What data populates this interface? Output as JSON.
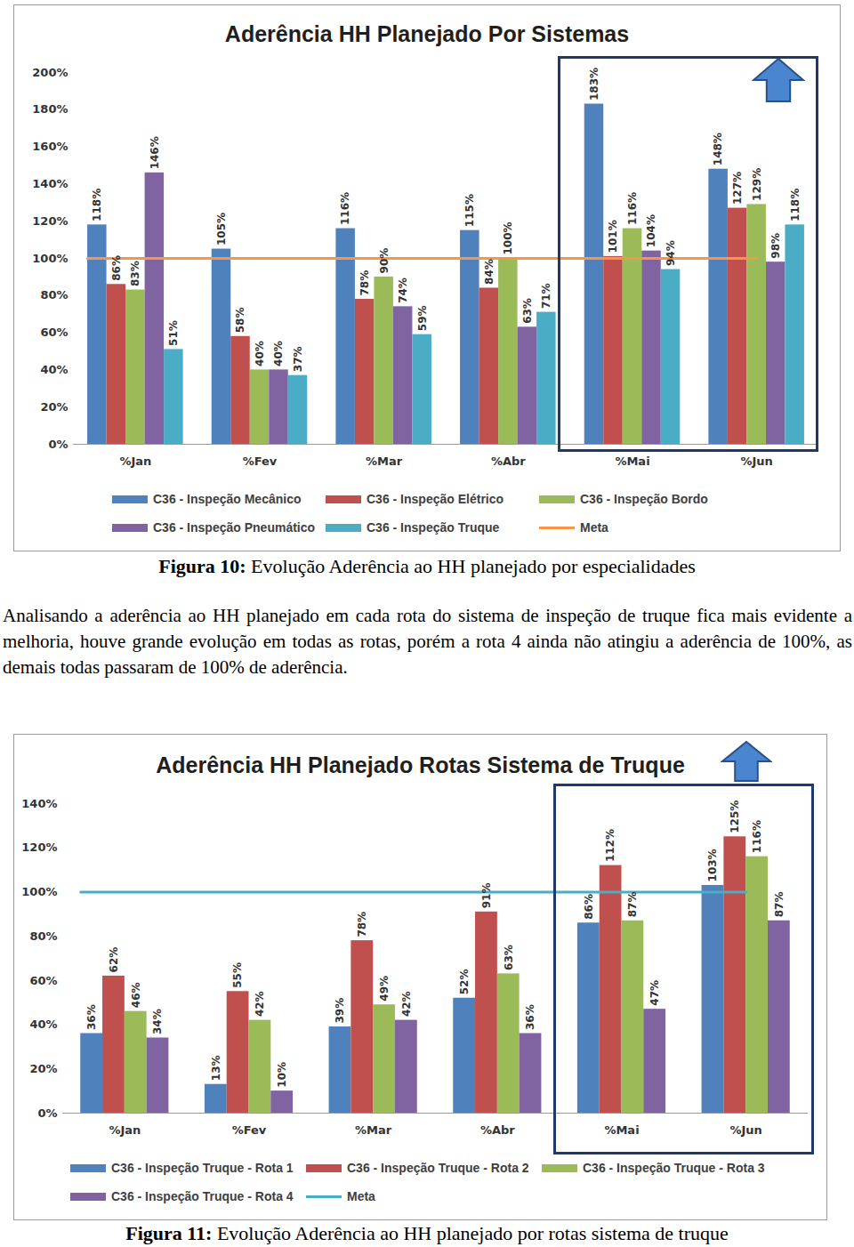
{
  "chart_data": [
    {
      "type": "bar",
      "title": "Aderência HH Planejado Por Sistemas",
      "categories": [
        "%Jan",
        "%Fev",
        "%Mar",
        "%Abr",
        "%Mai",
        "%Jun"
      ],
      "series": [
        {
          "name": "C36 - Inspeção Mecânico",
          "type": "bar",
          "color": "#4f81bd",
          "values": [
            118,
            105,
            116,
            115,
            183,
            148
          ],
          "value_labels": [
            "118%",
            "105%",
            "116%",
            "115%",
            "183%",
            "148%"
          ]
        },
        {
          "name": "C36 - Inspeção Elétrico",
          "type": "bar",
          "color": "#c0504d",
          "values": [
            86,
            58,
            78,
            84,
            101,
            127
          ],
          "value_labels": [
            "86%",
            "58%",
            "78%",
            "84%",
            "101%",
            "127%"
          ]
        },
        {
          "name": "C36 - Inspeção Bordo",
          "type": "bar",
          "color": "#9bbb59",
          "values": [
            83,
            40,
            90,
            100,
            116,
            129
          ],
          "value_labels": [
            "83%",
            "40%",
            "90%",
            "100%",
            "116%",
            "129%"
          ]
        },
        {
          "name": "C36 - Inspeção Pneumático",
          "type": "bar",
          "color": "#8064a2",
          "values": [
            146,
            40,
            74,
            63,
            104,
            98
          ],
          "value_labels": [
            "146%",
            "40%",
            "74%",
            "63%",
            "104%",
            "98%"
          ]
        },
        {
          "name": "C36 - Inspeção Truque",
          "type": "bar",
          "color": "#4bacc6",
          "values": [
            51,
            37,
            59,
            71,
            94,
            118
          ],
          "value_labels": [
            "51%",
            "37%",
            "59%",
            "71%",
            "94%",
            "118%"
          ]
        },
        {
          "name": "Meta",
          "type": "line",
          "color": "#f79646",
          "values": [
            100,
            100,
            100,
            100,
            100,
            100
          ]
        }
      ],
      "ylim": [
        0,
        200
      ],
      "yticks": [
        {
          "value": 0,
          "label": "0%"
        },
        {
          "value": 20,
          "label": "20%"
        },
        {
          "value": 40,
          "label": "40%"
        },
        {
          "value": 60,
          "label": "60%"
        },
        {
          "value": 80,
          "label": "80%"
        },
        {
          "value": 100,
          "label": "100%"
        },
        {
          "value": 120,
          "label": "120%"
        },
        {
          "value": 140,
          "label": "140%"
        },
        {
          "value": 160,
          "label": "160%"
        },
        {
          "value": 180,
          "label": "180%"
        },
        {
          "value": 200,
          "label": "200%"
        }
      ],
      "grid": false,
      "data_labels": true,
      "legend": "bottom"
    },
    {
      "type": "bar",
      "title": "Aderência HH Planejado Rotas Sistema de Truque",
      "categories": [
        "%Jan",
        "%Fev",
        "%Mar",
        "%Abr",
        "%Mai",
        "%Jun"
      ],
      "series": [
        {
          "name": "C36 - Inspeção Truque - Rota 1",
          "type": "bar",
          "color": "#4f81bd",
          "values": [
            36,
            13,
            39,
            52,
            86,
            103
          ],
          "value_labels": [
            "36%",
            "13%",
            "39%",
            "52%",
            "86%",
            "103%"
          ]
        },
        {
          "name": "C36 - Inspeção Truque - Rota 2",
          "type": "bar",
          "color": "#c0504d",
          "values": [
            62,
            55,
            78,
            91,
            112,
            125
          ],
          "value_labels": [
            "62%",
            "55%",
            "78%",
            "91%",
            "112%",
            "125%"
          ]
        },
        {
          "name": "C36 - Inspeção Truque - Rota 3",
          "type": "bar",
          "color": "#9bbb59",
          "values": [
            46,
            42,
            49,
            63,
            87,
            116
          ],
          "value_labels": [
            "46%",
            "42%",
            "49%",
            "63%",
            "87%",
            "116%"
          ]
        },
        {
          "name": "C36 - Inspeção Truque - Rota 4",
          "type": "bar",
          "color": "#8064a2",
          "values": [
            34,
            10,
            42,
            36,
            47,
            87
          ],
          "value_labels": [
            "34%",
            "10%",
            "42%",
            "36%",
            "47%",
            "87%"
          ]
        },
        {
          "name": "Meta",
          "type": "line",
          "color": "#4bacc6",
          "values": [
            100,
            100,
            100,
            100,
            100,
            100
          ]
        }
      ],
      "ylim": [
        0,
        140
      ],
      "yticks": [
        {
          "value": 0,
          "label": "0%"
        },
        {
          "value": 20,
          "label": "20%"
        },
        {
          "value": 40,
          "label": "40%"
        },
        {
          "value": 60,
          "label": "60%"
        },
        {
          "value": 80,
          "label": "80%"
        },
        {
          "value": 100,
          "label": "100%"
        },
        {
          "value": 120,
          "label": "120%"
        },
        {
          "value": 140,
          "label": "140%"
        }
      ],
      "grid": false,
      "data_labels": true,
      "legend": "bottom"
    }
  ],
  "captions": [
    {
      "label": "Figura 10:",
      "text": "Evolução Aderência ao HH planejado por especialidades"
    },
    {
      "label": "Figura 11:",
      "text": "Evolução Aderência ao HH planejado por rotas sistema de truque"
    }
  ],
  "paragraph": "Analisando a aderência ao HH planejado em cada rota do sistema de inspeção de truque fica mais evidente a melhoria, houve grande evolução em todas as rotas, porém a rota 4 ainda não atingiu a aderência de 100%, as demais todas passaram de 100% de aderência."
}
